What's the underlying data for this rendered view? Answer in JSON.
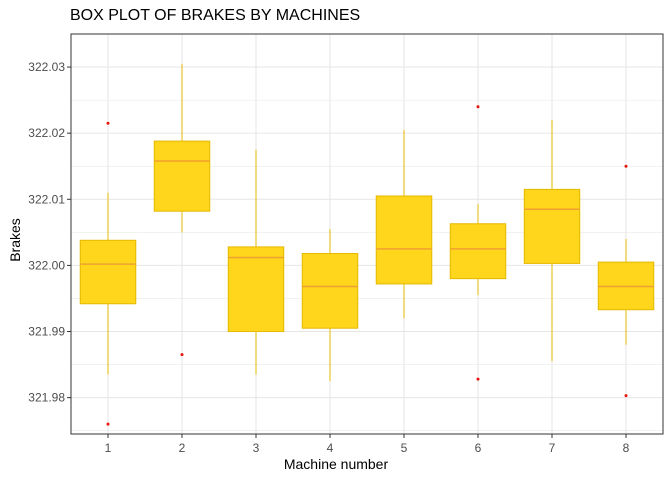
{
  "chart_data": {
    "type": "boxplot",
    "title": "BOX PLOT OF BRAKES BY MACHINES",
    "xlabel": "Machine number",
    "ylabel": "Brakes",
    "ylim": [
      321.9745,
      322.035
    ],
    "yticks": [
      "321.98",
      "321.99",
      "322.00",
      "322.01",
      "322.02",
      "322.03"
    ],
    "ytick_values": [
      321.98,
      321.99,
      322.0,
      322.01,
      322.02,
      322.03
    ],
    "categories": [
      "1",
      "2",
      "3",
      "4",
      "5",
      "6",
      "7",
      "8"
    ],
    "grid": true,
    "boxes": [
      {
        "min": 321.9835,
        "q1": 321.9942,
        "median": 322.0002,
        "q3": 322.0038,
        "max": 322.011,
        "outliers": [
          322.0215,
          321.976
        ]
      },
      {
        "min": 322.005,
        "q1": 322.0082,
        "median": 322.0158,
        "q3": 322.0188,
        "max": 322.0305,
        "outliers": [
          321.9865
        ]
      },
      {
        "min": 321.9835,
        "q1": 321.99,
        "median": 322.0012,
        "q3": 322.0028,
        "max": 322.0175,
        "outliers": []
      },
      {
        "min": 321.9825,
        "q1": 321.9905,
        "median": 321.9968,
        "q3": 322.0018,
        "max": 322.0055,
        "outliers": []
      },
      {
        "min": 321.992,
        "q1": 321.9972,
        "median": 322.0025,
        "q3": 322.0105,
        "max": 322.0205,
        "outliers": []
      },
      {
        "min": 321.9955,
        "q1": 321.998,
        "median": 322.0025,
        "q3": 322.0063,
        "max": 322.0093,
        "outliers": [
          322.024,
          321.9828
        ]
      },
      {
        "min": 321.9855,
        "q1": 322.0003,
        "median": 322.0085,
        "q3": 322.0115,
        "max": 322.022,
        "outliers": []
      },
      {
        "min": 321.988,
        "q1": 321.9933,
        "median": 321.9968,
        "q3": 322.0005,
        "max": 322.004,
        "outliers": [
          322.015,
          321.9803
        ]
      }
    ],
    "colors": {
      "box_fill": "#FFD61C",
      "box_stroke": "#E6B800",
      "median": "#F0A030",
      "outlier": "#E8140A",
      "grid": "#E6E6E6",
      "panel_border": "#333333"
    }
  }
}
